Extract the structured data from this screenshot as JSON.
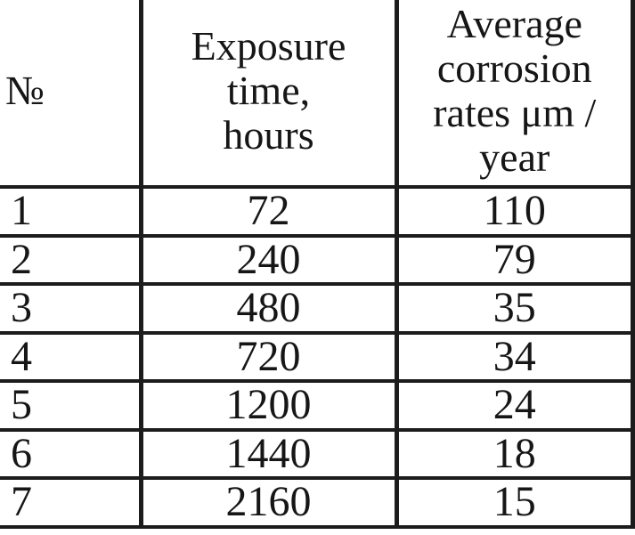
{
  "colors": {
    "background": "#ffffff",
    "text": "#161616",
    "rule_lines": "#1c1c1c"
  },
  "table": {
    "header": {
      "col1": "№",
      "col2_lines": [
        "Exposure",
        "time,",
        "hours"
      ],
      "col3_lines": [
        "Average",
        "corrosion",
        "rates μm /",
        "year"
      ]
    },
    "rows": [
      {
        "no": "1",
        "exposure_hours": "72",
        "corrosion_rate": "110"
      },
      {
        "no": "2",
        "exposure_hours": "240",
        "corrosion_rate": "79"
      },
      {
        "no": "3",
        "exposure_hours": "480",
        "corrosion_rate": "35"
      },
      {
        "no": "4",
        "exposure_hours": "720",
        "corrosion_rate": "34"
      },
      {
        "no": "5",
        "exposure_hours": "1200",
        "corrosion_rate": "24"
      },
      {
        "no": "6",
        "exposure_hours": "1440",
        "corrosion_rate": "18"
      },
      {
        "no": "7",
        "exposure_hours": "2160",
        "corrosion_rate": "15"
      }
    ]
  },
  "chart_data": {
    "type": "table",
    "title": "",
    "columns": [
      "№",
      "Exposure time, hours",
      "Average corrosion rates μm / year"
    ],
    "rows": [
      [
        1,
        72,
        110
      ],
      [
        2,
        240,
        79
      ],
      [
        3,
        480,
        35
      ],
      [
        4,
        720,
        34
      ],
      [
        5,
        1200,
        24
      ],
      [
        6,
        1440,
        18
      ],
      [
        7,
        2160,
        15
      ]
    ],
    "x": [
      72,
      240,
      480,
      720,
      1200,
      1440,
      2160
    ],
    "y": [
      110,
      79,
      35,
      34,
      24,
      18,
      15
    ],
    "xlabel": "Exposure time, hours",
    "ylabel": "Average corrosion rates μm / year"
  }
}
